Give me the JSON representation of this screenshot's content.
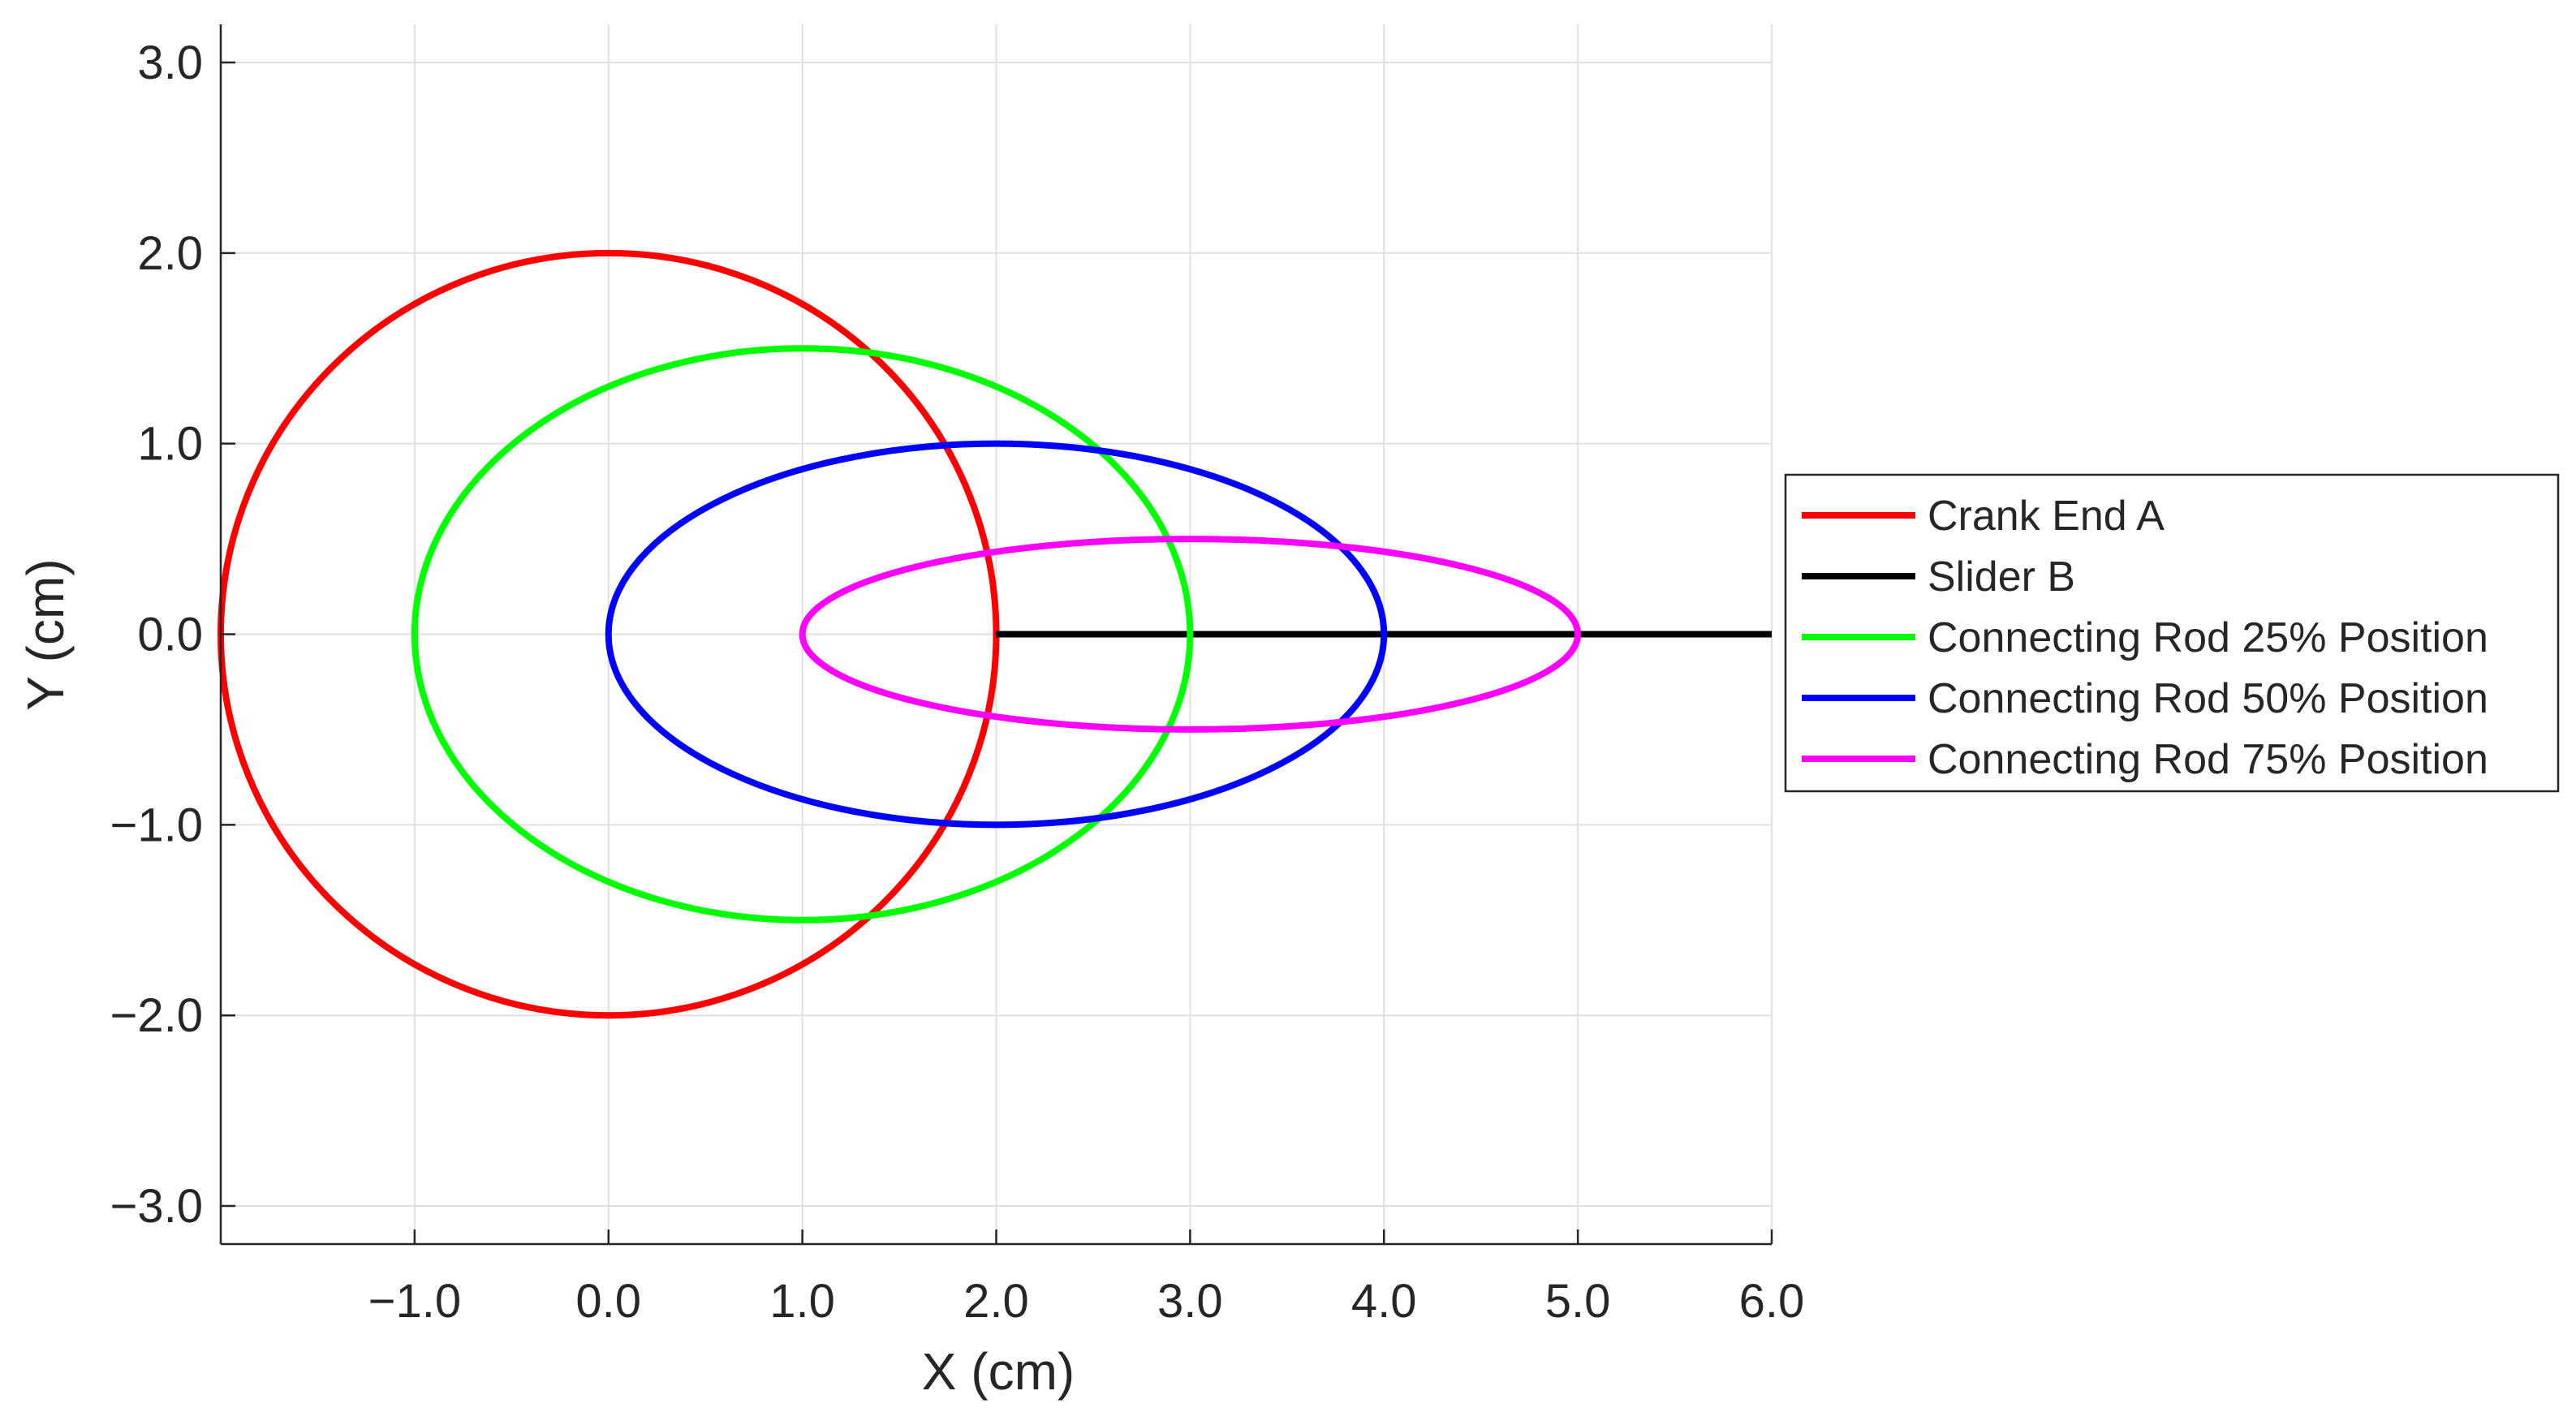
{
  "chart_data": {
    "type": "line",
    "title": "",
    "xlabel": "X (cm)",
    "ylabel": "Y (cm)",
    "xlim": [
      -2.0,
      6.0
    ],
    "ylim": [
      -3.2,
      3.2
    ],
    "xticks": [
      -1.0,
      0.0,
      1.0,
      2.0,
      3.0,
      4.0,
      5.0,
      6.0
    ],
    "xtick_labels": [
      "−1.0",
      "0.0",
      "1.0",
      "2.0",
      "3.0",
      "4.0",
      "5.0",
      "6.0"
    ],
    "yticks": [
      -3.0,
      -2.0,
      -1.0,
      0.0,
      1.0,
      2.0,
      3.0
    ],
    "ytick_labels": [
      "−3.0",
      "−2.0",
      "−1.0",
      "0.0",
      "1.0",
      "2.0",
      "3.0"
    ],
    "grid": true,
    "legend_position": "outside-right",
    "series": [
      {
        "name": "Crank End A",
        "color": "#ff0000",
        "shape": "ellipse",
        "center": [
          0.0,
          0.0
        ],
        "x_extent": [
          -2.0,
          2.0
        ],
        "y_extent": [
          -2.0,
          2.0
        ]
      },
      {
        "name": "Slider B",
        "color": "#000000",
        "shape": "segment",
        "x": [
          2.0,
          6.0
        ],
        "y": [
          0.0,
          0.0
        ]
      },
      {
        "name": "Connecting Rod 25% Position",
        "color": "#00ff00",
        "shape": "ellipse",
        "center": [
          1.0,
          0.0
        ],
        "x_extent": [
          -1.0,
          3.0
        ],
        "y_extent": [
          -1.5,
          1.5
        ]
      },
      {
        "name": "Connecting Rod 50% Position",
        "color": "#0000ff",
        "shape": "ellipse",
        "center": [
          2.0,
          0.0
        ],
        "x_extent": [
          0.0,
          4.0
        ],
        "y_extent": [
          -1.0,
          1.0
        ]
      },
      {
        "name": "Connecting Rod 75% Position",
        "color": "#ff00ff",
        "shape": "ellipse",
        "center": [
          3.0,
          0.0
        ],
        "x_extent": [
          1.0,
          5.0
        ],
        "y_extent": [
          -0.5,
          0.5
        ]
      }
    ]
  }
}
